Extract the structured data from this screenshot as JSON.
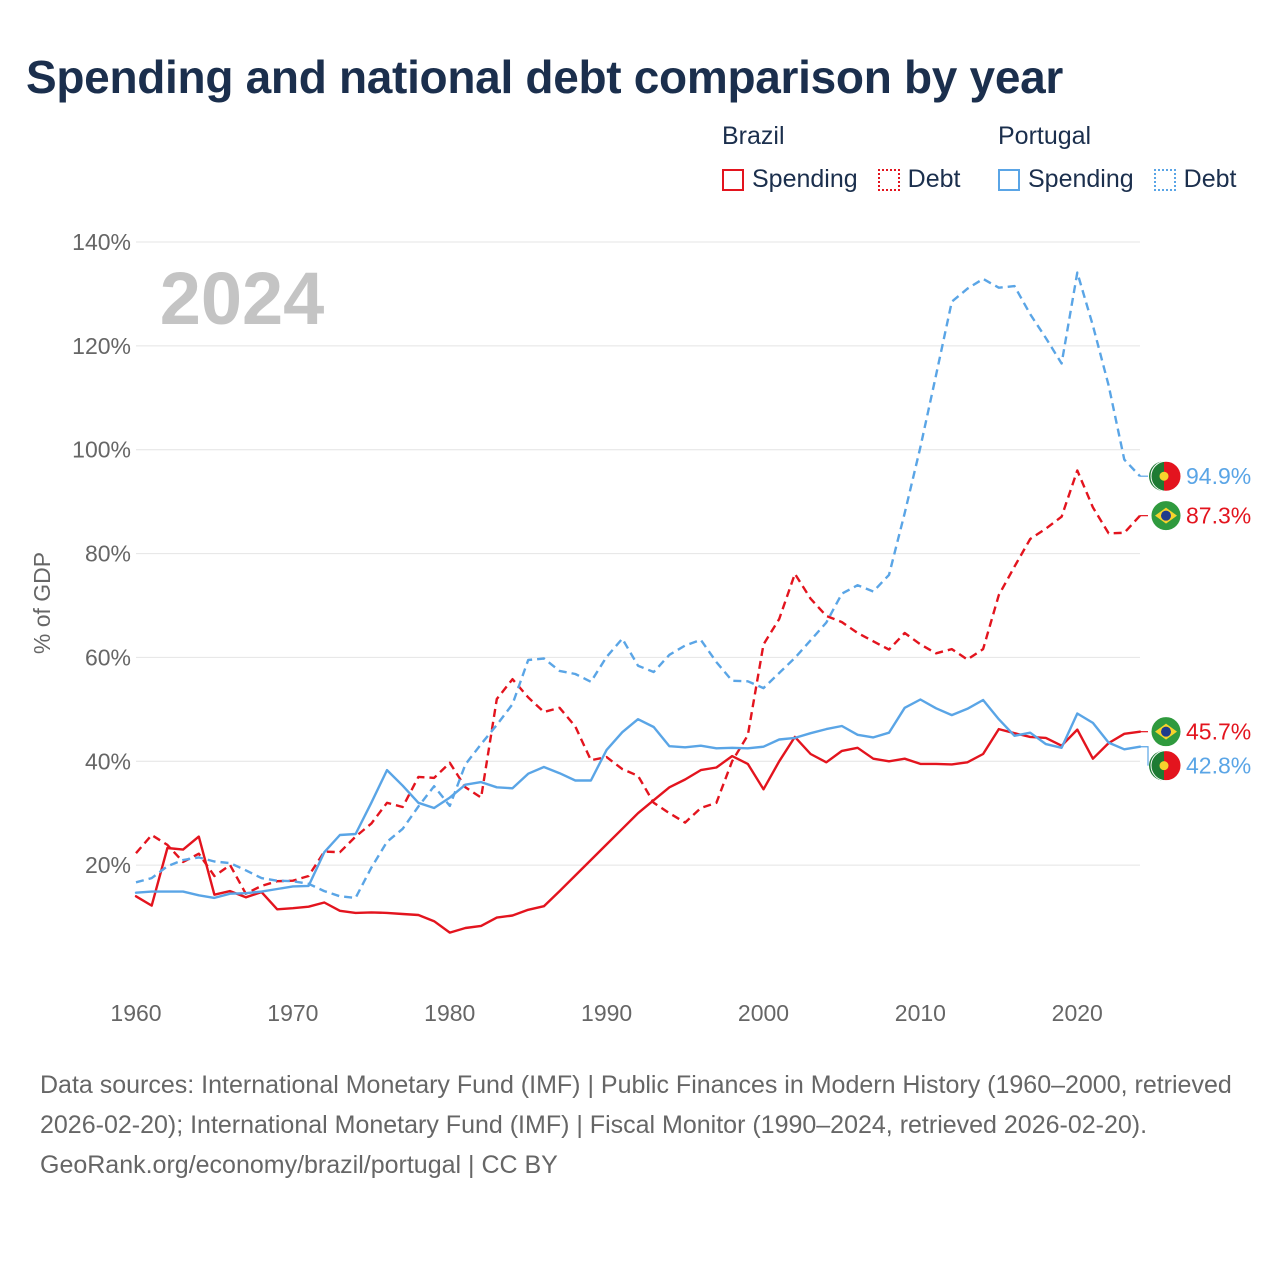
{
  "title": "Spending and national debt comparison by year",
  "legend": {
    "brazil": {
      "name": "Brazil",
      "spending_label": "Spending",
      "debt_label": "Debt"
    },
    "portugal": {
      "name": "Portugal",
      "spending_label": "Spending",
      "debt_label": "Debt"
    }
  },
  "colors": {
    "brazil": "#e3141e",
    "portugal": "#5aa5e6",
    "grid": "#e4e4e4",
    "axis_text": "#666666",
    "year_watermark": "#c4c4c4",
    "title": "#1b2f4d"
  },
  "source_text": "Data sources: International Monetary Fund (IMF) | Public Finances in Modern History (1960–2000, retrieved 2026-02-20); International Monetary Fund (IMF) | Fiscal Monitor (1990–2024, retrieved 2026-02-20).",
  "attribution": "GeoRank.org/economy/brazil/portugal | CC BY",
  "chart_data": {
    "type": "line",
    "year_label": "2024",
    "ylabel": "% of GDP",
    "xlabel": "",
    "xlim": [
      1960,
      2024
    ],
    "ylim": [
      0,
      140
    ],
    "yticks": [
      20,
      40,
      60,
      80,
      100,
      120,
      140
    ],
    "ytick_labels": [
      "20%",
      "40%",
      "60%",
      "80%",
      "100%",
      "120%",
      "140%"
    ],
    "xticks": [
      1960,
      1970,
      1980,
      1990,
      2000,
      2010,
      2020
    ],
    "xtick_labels": [
      "1960",
      "1970",
      "1980",
      "1990",
      "2000",
      "2010",
      "2020"
    ],
    "x": [
      1960,
      1961,
      1962,
      1963,
      1964,
      1965,
      1966,
      1967,
      1968,
      1969,
      1970,
      1971,
      1972,
      1973,
      1974,
      1975,
      1976,
      1977,
      1978,
      1979,
      1980,
      1981,
      1982,
      1983,
      1984,
      1985,
      1986,
      1987,
      1988,
      1989,
      1990,
      1991,
      1992,
      1993,
      1994,
      1995,
      1996,
      1997,
      1998,
      1999,
      2000,
      2001,
      2002,
      2003,
      2004,
      2005,
      2006,
      2007,
      2008,
      2009,
      2010,
      2011,
      2012,
      2013,
      2014,
      2015,
      2016,
      2017,
      2018,
      2019,
      2020,
      2021,
      2022,
      2023,
      2024
    ],
    "series": [
      {
        "name": "Brazil Spending",
        "country": "brazil",
        "style": "solid",
        "end_label": "45.7%",
        "values": [
          14.0,
          12.2,
          23.3,
          23.0,
          25.5,
          14.3,
          15.0,
          13.8,
          14.8,
          11.5,
          11.7,
          12.0,
          12.8,
          11.2,
          10.8,
          10.9,
          10.8,
          10.6,
          10.4,
          9.2,
          7.0,
          7.9,
          8.3,
          9.9,
          10.3,
          11.4,
          12.1,
          15.0,
          18.0,
          21.0,
          24.0,
          27.0,
          30.0,
          32.5,
          35.0,
          36.5,
          38.3,
          38.8,
          41.0,
          39.5,
          34.6,
          40.0,
          44.7,
          41.4,
          39.8,
          42.0,
          42.6,
          40.5,
          40.0,
          40.5,
          39.5,
          39.5,
          39.4,
          39.8,
          41.4,
          46.2,
          45.4,
          44.7,
          44.5,
          43.0,
          46.1,
          40.5,
          43.5,
          45.3,
          45.7
        ]
      },
      {
        "name": "Brazil Debt",
        "country": "brazil",
        "style": "dashed",
        "end_label": "87.3%",
        "values": [
          22.3,
          25.8,
          23.9,
          20.6,
          22.2,
          17.9,
          20.0,
          14.5,
          16.0,
          16.9,
          17.0,
          17.9,
          22.6,
          22.5,
          25.5,
          28.0,
          32.0,
          31.2,
          37.0,
          36.8,
          39.7,
          35.0,
          33.0,
          52.0,
          55.8,
          52.3,
          49.5,
          50.3,
          46.7,
          40.2,
          40.8,
          38.5,
          37.2,
          32.0,
          30.0,
          28.2,
          31.0,
          32.0,
          40.0,
          45.0,
          62.5,
          67.4,
          76.1,
          71.3,
          68.0,
          66.8,
          64.7,
          63.1,
          61.5,
          64.7,
          62.5,
          60.8,
          61.6,
          59.6,
          61.6,
          72.0,
          77.5,
          82.8,
          84.8,
          87.1,
          96.0,
          88.9,
          83.9,
          84.0,
          87.3
        ]
      },
      {
        "name": "Portugal Spending",
        "country": "portugal",
        "style": "solid",
        "end_label": "42.8%",
        "values": [
          14.7,
          14.9,
          14.9,
          14.9,
          14.2,
          13.7,
          14.5,
          14.6,
          14.9,
          15.4,
          15.9,
          16.0,
          22.5,
          25.8,
          26.0,
          32.0,
          38.3,
          35.3,
          32.0,
          31.0,
          33.0,
          35.5,
          36.0,
          35.0,
          34.8,
          37.6,
          38.9,
          37.7,
          36.3,
          36.3,
          42.2,
          45.6,
          48.1,
          46.6,
          42.9,
          42.7,
          43.0,
          42.5,
          42.6,
          42.5,
          42.8,
          44.2,
          44.5,
          45.4,
          46.2,
          46.8,
          45.1,
          44.6,
          45.5,
          50.3,
          51.9,
          50.2,
          48.9,
          50.1,
          51.8,
          48.1,
          44.9,
          45.5,
          43.3,
          42.6,
          49.2,
          47.4,
          43.6,
          42.3,
          42.8
        ]
      },
      {
        "name": "Portugal Debt",
        "country": "portugal",
        "style": "dashed",
        "end_label": "94.9%",
        "values": [
          16.7,
          17.5,
          19.8,
          21.0,
          21.5,
          20.7,
          20.4,
          19.0,
          17.5,
          17.0,
          16.9,
          16.4,
          15.0,
          14.0,
          13.7,
          19.5,
          24.5,
          27.0,
          31.3,
          35.2,
          31.4,
          39.4,
          43.3,
          47.0,
          51.0,
          59.5,
          59.8,
          57.4,
          56.8,
          55.3,
          60.1,
          63.6,
          58.4,
          57.2,
          60.5,
          62.3,
          63.4,
          59.1,
          55.5,
          55.4,
          54.1,
          57.0,
          59.9,
          63.3,
          66.7,
          72.3,
          73.9,
          72.7,
          75.9,
          87.8,
          100.5,
          114.4,
          128.5,
          131.0,
          132.9,
          131.2,
          131.5,
          126.1,
          121.5,
          116.6,
          134.1,
          123.9,
          112.4,
          98.1,
          94.9
        ]
      }
    ]
  }
}
